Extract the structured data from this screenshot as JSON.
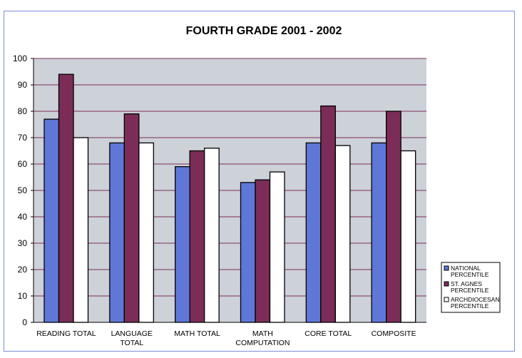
{
  "chart_data": {
    "type": "bar",
    "title": "FOURTH GRADE 2001 - 2002",
    "xlabel": "",
    "ylabel": "",
    "ylim": [
      0,
      100
    ],
    "yticks": [
      0,
      10,
      20,
      30,
      40,
      50,
      60,
      70,
      80,
      90,
      100
    ],
    "grid": true,
    "legend_position": "right",
    "categories": [
      [
        "READING TOTAL"
      ],
      [
        "LANGUAGE",
        "TOTAL"
      ],
      [
        "MATH TOTAL"
      ],
      [
        "MATH",
        "COMPUTATION"
      ],
      [
        "CORE TOTAL"
      ],
      [
        "COMPOSITE"
      ]
    ],
    "series": [
      {
        "name": [
          "NATIONAL",
          "PERCENTILE"
        ],
        "color": "#5f78d8",
        "values": [
          77,
          68,
          59,
          53,
          68,
          68
        ]
      },
      {
        "name": [
          "ST. AGNES",
          "PERCENTILE"
        ],
        "color": "#7b2d57",
        "values": [
          94,
          79,
          65,
          54,
          82,
          80
        ]
      },
      {
        "name": [
          "ARCHDIOCESAN",
          "PERCENTILE"
        ],
        "color": "#ffffff",
        "values": [
          70,
          68,
          66,
          57,
          67,
          65
        ]
      }
    ],
    "colors": {
      "plot_bg": "#cdd1d8",
      "gridline": "#7b2d57"
    }
  }
}
